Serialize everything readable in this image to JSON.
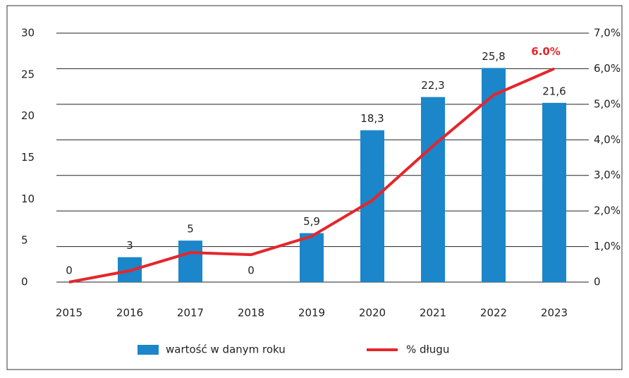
{
  "chart_data": {
    "type": "bar-line",
    "categories": [
      "2015",
      "2016",
      "2017",
      "2018",
      "2019",
      "2020",
      "2021",
      "2022",
      "2023"
    ],
    "series": [
      {
        "name": "wartość w danym roku",
        "color": "#1b86c9",
        "type": "bar",
        "values": [
          0,
          3,
          5,
          0,
          5.9,
          18.3,
          22.3,
          25.8,
          21.6
        ],
        "value_labels": [
          "0",
          "3",
          "5",
          "0",
          "5,9",
          "18,3",
          "22,3",
          "25,8",
          "21,6"
        ]
      },
      {
        "name": "% długu",
        "color": "#e5262b",
        "type": "line",
        "axis": "y2",
        "values": [
          0,
          0.32,
          0.83,
          0.77,
          1.29,
          2.3,
          3.83,
          5.26,
          6.0
        ],
        "value_labels": [
          null,
          null,
          null,
          null,
          null,
          null,
          null,
          null,
          "6.0%"
        ]
      }
    ],
    "ylim": [
      0,
      30
    ],
    "yticks": [
      0,
      5,
      10,
      15,
      20,
      25,
      30
    ],
    "y2lim": [
      0,
      7
    ],
    "y2ticks": [
      0,
      {
        "value": 1,
        "label": "1,0%"
      },
      {
        "value": 2,
        "label": "2,0%"
      },
      {
        "value": 3,
        "label": "3,0%"
      },
      {
        "value": 4,
        "label": "4,0%"
      },
      {
        "value": 5,
        "label": "5,0%"
      },
      {
        "value": 6,
        "label": "6,0%"
      },
      {
        "value": 7,
        "label": "7,0%"
      }
    ],
    "grid": true,
    "legend": "bottom"
  }
}
